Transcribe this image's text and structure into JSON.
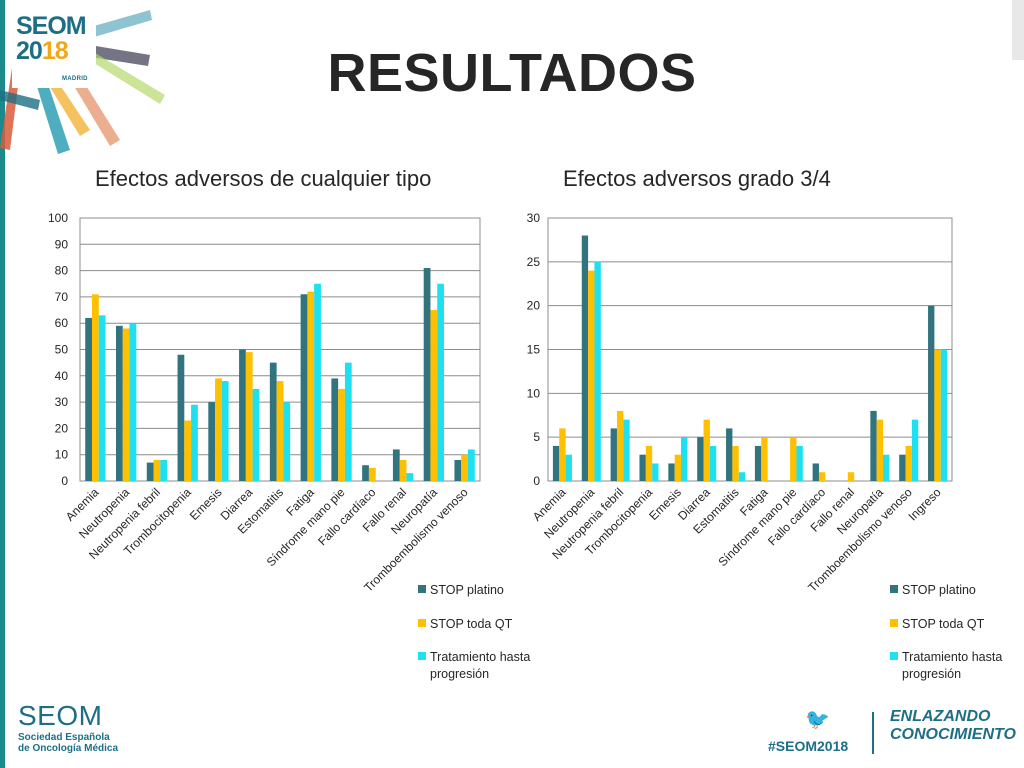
{
  "header": {
    "logo_name": "SEOM",
    "logo_year_a": "20",
    "logo_year_b": "18",
    "logo_city": "MADRID",
    "title": "RESULTADOS"
  },
  "colors": {
    "series": [
      "#31737f",
      "#ffc000",
      "#1ee0f0"
    ],
    "brand": "#1d6f86"
  },
  "legend_items": [
    {
      "line1": "STOP platino",
      "line2": ""
    },
    {
      "line1": "STOP toda QT",
      "line2": ""
    },
    {
      "line1": "Tratamiento hasta",
      "line2": "progresión"
    }
  ],
  "chart_data": [
    {
      "type": "bar",
      "title": "Efectos adversos de cualquier tipo",
      "xlabel": "",
      "ylabel": "",
      "ylim": [
        0,
        100
      ],
      "yticks": [
        0,
        10,
        20,
        30,
        40,
        50,
        60,
        70,
        80,
        90,
        100
      ],
      "grid": true,
      "legend_position": "bottom-right",
      "categories": [
        "Anemia",
        "Neutropenia",
        "Neutropenia febril",
        "Trombocitopenia",
        "Emesis",
        "Diarrea",
        "Estomatitis",
        "Fatiga",
        "Síndrome mano pie",
        "Fallo cardíaco",
        "Fallo renal",
        "Neuropatía",
        "Tromboembolismo venoso"
      ],
      "series": [
        {
          "name": "STOP platino",
          "values": [
            62,
            59,
            7,
            48,
            30,
            50,
            45,
            71,
            39,
            6,
            12,
            81,
            8
          ]
        },
        {
          "name": "STOP toda QT",
          "values": [
            71,
            58,
            8,
            23,
            39,
            49,
            38,
            72,
            35,
            5,
            8,
            65,
            10
          ]
        },
        {
          "name": "Tratamiento hasta progresión",
          "values": [
            63,
            60,
            8,
            29,
            38,
            35,
            30,
            75,
            45,
            0,
            3,
            75,
            12
          ]
        }
      ]
    },
    {
      "type": "bar",
      "title": "Efectos adversos grado 3/4",
      "xlabel": "",
      "ylabel": "",
      "ylim": [
        0,
        30
      ],
      "yticks": [
        0,
        5,
        10,
        15,
        20,
        25,
        30
      ],
      "grid": true,
      "legend_position": "bottom-right",
      "categories": [
        "Anemia",
        "Neutropenia",
        "Neutropenia febril",
        "Trombocitopenia",
        "Emesis",
        "Diarrea",
        "Estomatitis",
        "Fatiga",
        "Síndrome mano pie",
        "Fallo cardíaco",
        "Fallo renal",
        "Neuropatía",
        "Tromboembolismo venoso",
        "Ingreso"
      ],
      "series": [
        {
          "name": "STOP platino",
          "values": [
            4,
            28,
            6,
            3,
            2,
            5,
            6,
            4,
            0,
            2,
            0,
            8,
            3,
            20
          ]
        },
        {
          "name": "STOP toda QT",
          "values": [
            6,
            24,
            8,
            4,
            3,
            7,
            4,
            5,
            5,
            1,
            1,
            7,
            4,
            15
          ]
        },
        {
          "name": "Tratamiento hasta progresión",
          "values": [
            3,
            25,
            7,
            2,
            5,
            4,
            1,
            0,
            4,
            0,
            0,
            3,
            7,
            15
          ]
        }
      ]
    }
  ],
  "footer": {
    "logo_name": "SEOM",
    "logo_line1": "Sociedad Española",
    "logo_line2": "de Oncología Médica",
    "hashtag": "#SEOM2018",
    "tagline_line1": "ENLAZANDO",
    "tagline_line2": "CONOCIMIENTO"
  }
}
